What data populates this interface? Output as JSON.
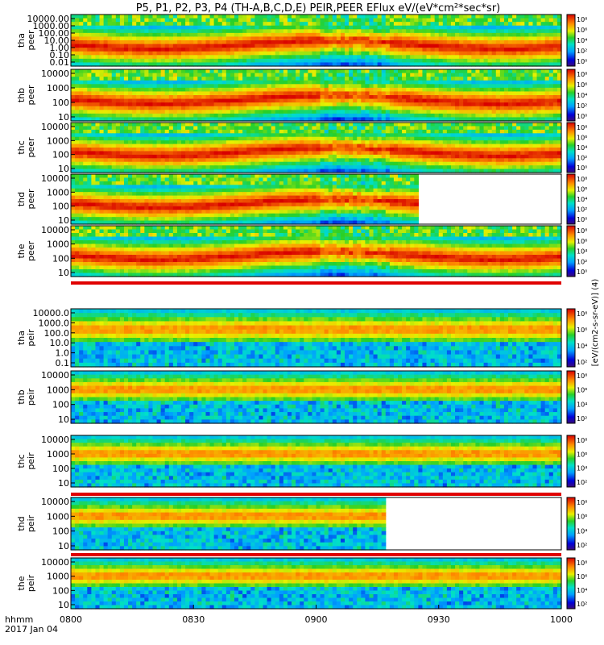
{
  "title": "P5, P1, P2, P3, P4 (TH-A,B,C,D,E) PEIR,PEER EFlux eV/(eV*cm²*sec*sr)",
  "colorbar_label": "[eV/(cm2-s-sr-eV)] (4)",
  "time_axis": {
    "label_line1": "hhmm",
    "label_line2": "2017 Jan 04",
    "ticks": [
      "0800",
      "0830",
      "0900",
      "0930",
      "1000"
    ]
  },
  "colorbar_ticks": [
    "10⁸",
    "10⁶",
    "10⁴",
    "10²",
    "10⁰"
  ],
  "colorbar_ticks_ion": [
    "10⁸",
    "10⁶",
    "10⁴",
    "10²"
  ],
  "chart_data": {
    "type": "heatmap",
    "x_range": [
      "0800",
      "1000"
    ],
    "x_unit": "hhmm",
    "z_range": [
      1,
      100000000
    ],
    "z_scale": "log",
    "colormap": "rainbow",
    "panels": [
      {
        "id": "tha-peer",
        "probe": "tha",
        "species": "peer",
        "yticks": [
          "10000.00",
          "1000.00",
          "100.00",
          "10.00",
          "1.00",
          "0.10",
          "0.01"
        ],
        "ylim": [
          0.01,
          30000
        ],
        "yscale": "log"
      },
      {
        "id": "thb-peer",
        "probe": "thb",
        "species": "peer",
        "yticks": [
          "10000",
          "1000",
          "100",
          "10"
        ],
        "ylim": [
          5,
          30000
        ],
        "yscale": "log"
      },
      {
        "id": "thc-peer",
        "probe": "thc",
        "species": "peer",
        "yticks": [
          "10000",
          "1000",
          "100",
          "10"
        ],
        "ylim": [
          5,
          30000
        ],
        "yscale": "log"
      },
      {
        "id": "thd-peer",
        "probe": "thd",
        "species": "peer",
        "yticks": [
          "10000",
          "1000",
          "100",
          "10"
        ],
        "ylim": [
          5,
          30000
        ],
        "yscale": "log",
        "data_end": "0925"
      },
      {
        "id": "the-peer",
        "probe": "the",
        "species": "peer",
        "yticks": [
          "10000",
          "1000",
          "100",
          "10"
        ],
        "ylim": [
          5,
          30000
        ],
        "yscale": "log"
      },
      {
        "id": "tha-peir",
        "probe": "tha",
        "species": "peir",
        "yticks": [
          "10000.0",
          "1000.0",
          "100.0",
          "10.0",
          "1.0",
          "0.1"
        ],
        "ylim": [
          0.1,
          30000
        ],
        "yscale": "log"
      },
      {
        "id": "thb-peir",
        "probe": "thb",
        "species": "peir",
        "yticks": [
          "10000",
          "1000",
          "100",
          "10"
        ],
        "ylim": [
          5,
          30000
        ],
        "yscale": "log"
      },
      {
        "id": "thc-peir",
        "probe": "thc",
        "species": "peir",
        "yticks": [
          "10000",
          "1000",
          "100",
          "10"
        ],
        "ylim": [
          5,
          30000
        ],
        "yscale": "log"
      },
      {
        "id": "thd-peir",
        "probe": "thd",
        "species": "peir",
        "yticks": [
          "10000",
          "1000",
          "100",
          "10"
        ],
        "ylim": [
          5,
          30000
        ],
        "yscale": "log",
        "data_end": "0917"
      },
      {
        "id": "the-peir",
        "probe": "the",
        "species": "peir",
        "yticks": [
          "10000",
          "1000",
          "100",
          "10"
        ],
        "ylim": [
          5,
          30000
        ],
        "yscale": "log"
      }
    ]
  }
}
